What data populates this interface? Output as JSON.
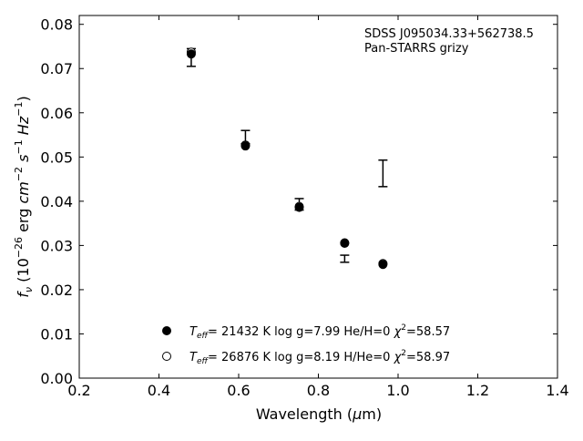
{
  "chart_data": {
    "type": "scatter",
    "xlabel_prefix": "Wavelength (",
    "xlabel_mu": "μ",
    "xlabel_suffix": "m)",
    "ylabel": {
      "f": "f",
      "nu": "ν",
      "open": " (10",
      "exp1": "−26",
      "erg": " erg ",
      "cm": "cm",
      "exp2": "−2",
      "s": "s",
      "exp3": "−1",
      "hz": "Hz",
      "exp4": "−1",
      "close": ")"
    },
    "xlim": [
      0.2,
      1.4
    ],
    "ylim": [
      0.0,
      0.082
    ],
    "x_ticks": [
      "0.2",
      "0.4",
      "0.6",
      "0.8",
      "1.0",
      "1.2",
      "1.4"
    ],
    "x_tick_values": [
      0.2,
      0.4,
      0.6,
      0.8,
      1.0,
      1.2,
      1.4
    ],
    "y_ticks": [
      "0.00",
      "0.01",
      "0.02",
      "0.03",
      "0.04",
      "0.05",
      "0.06",
      "0.07",
      "0.08"
    ],
    "y_tick_values": [
      0.0,
      0.01,
      0.02,
      0.03,
      0.04,
      0.05,
      0.06,
      0.07,
      0.08
    ],
    "annotation_lines": [
      "SDSS J095034.33+562738.5",
      "Pan-STARRS grizy"
    ],
    "observed": {
      "x": [
        0.481,
        0.617,
        0.752,
        0.866,
        0.962
      ],
      "y": [
        0.0725,
        0.0545,
        0.0393,
        0.027,
        0.0463
      ],
      "yerr": [
        0.002,
        0.0015,
        0.0013,
        0.0008,
        0.003
      ]
    },
    "series": [
      {
        "marker": "filled",
        "x": [
          0.481,
          0.617,
          0.752,
          0.866,
          0.962
        ],
        "y": [
          0.0733,
          0.0525,
          0.0386,
          0.0305,
          0.0257
        ],
        "legend": {
          "t": "T",
          "sub": "eff",
          "rest_a": "= 21432 K  log g=7.99  He/H=0  ",
          "chi": "χ",
          "sup": "2",
          "rest_b": "=58.57"
        }
      },
      {
        "marker": "open",
        "x": [
          0.481,
          0.617,
          0.752,
          0.866,
          0.962
        ],
        "y": [
          0.0737,
          0.0527,
          0.0388,
          0.0306,
          0.0259
        ],
        "legend": {
          "t": "T",
          "sub": "eff",
          "rest_a": "= 26876 K  log g=8.19  H/He=0  ",
          "chi": "χ",
          "sup": "2",
          "rest_b": "=58.97"
        }
      }
    ]
  }
}
